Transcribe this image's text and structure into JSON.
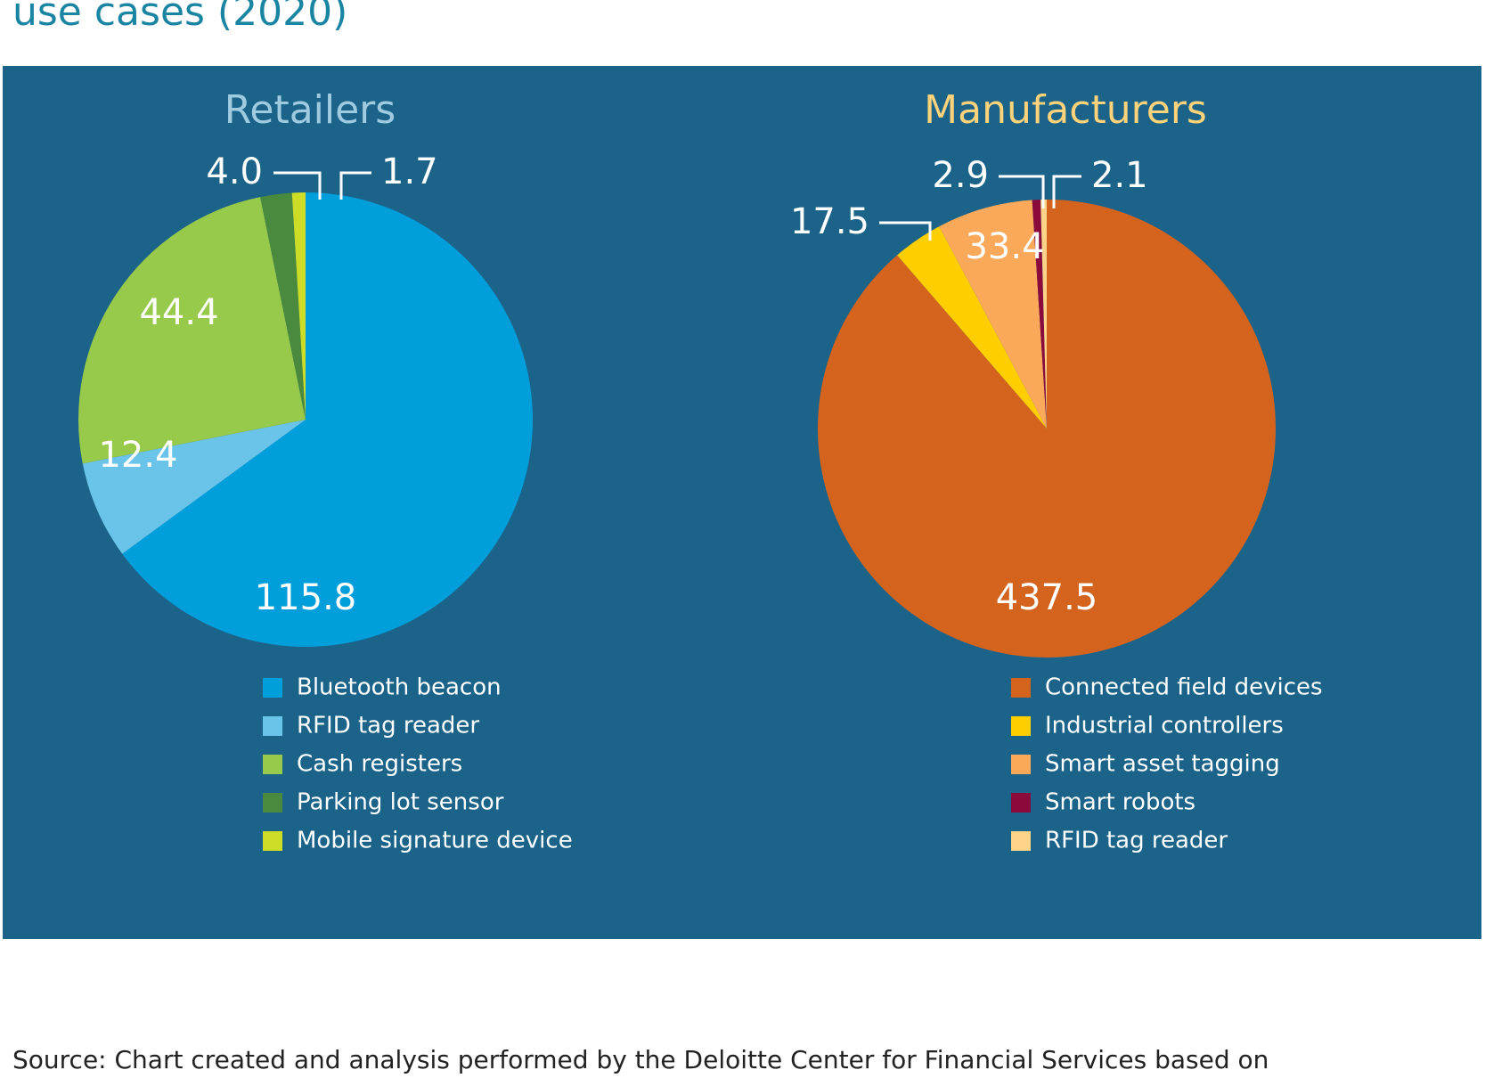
{
  "page": {
    "title": "use cases (2020)",
    "source": "Source: Chart created and analysis performed by the Deloitte Center for Financial Services based on"
  },
  "chart_data": [
    {
      "type": "pie",
      "title": "Retailers",
      "title_color": "#9fcbe1",
      "categories": [
        "Bluetooth beacon",
        "RFID tag reader",
        "Cash registers",
        "Parking lot sensor",
        "Mobile signature device"
      ],
      "values": [
        115.8,
        12.4,
        44.4,
        4.0,
        1.7
      ],
      "value_labels": [
        "115.8",
        "12.4",
        "44.4",
        "4.0",
        "1.7"
      ],
      "colors": [
        "#009fdb",
        "#6ac4ea",
        "#97c94b",
        "#4a8a3f",
        "#cddc27"
      ]
    },
    {
      "type": "pie",
      "title": "Manufacturers",
      "title_color": "#fcd27a",
      "categories": [
        "Connected field devices",
        "Industrial controllers",
        "Smart asset tagging",
        "Smart robots",
        "RFID tag reader"
      ],
      "values": [
        437.5,
        17.5,
        33.4,
        2.9,
        2.1
      ],
      "value_labels": [
        "437.5",
        "17.5",
        "33.4",
        "2.9",
        "2.1"
      ],
      "colors": [
        "#d4631e",
        "#fece00",
        "#faa85a",
        "#8b0a3c",
        "#fdd489"
      ]
    }
  ]
}
